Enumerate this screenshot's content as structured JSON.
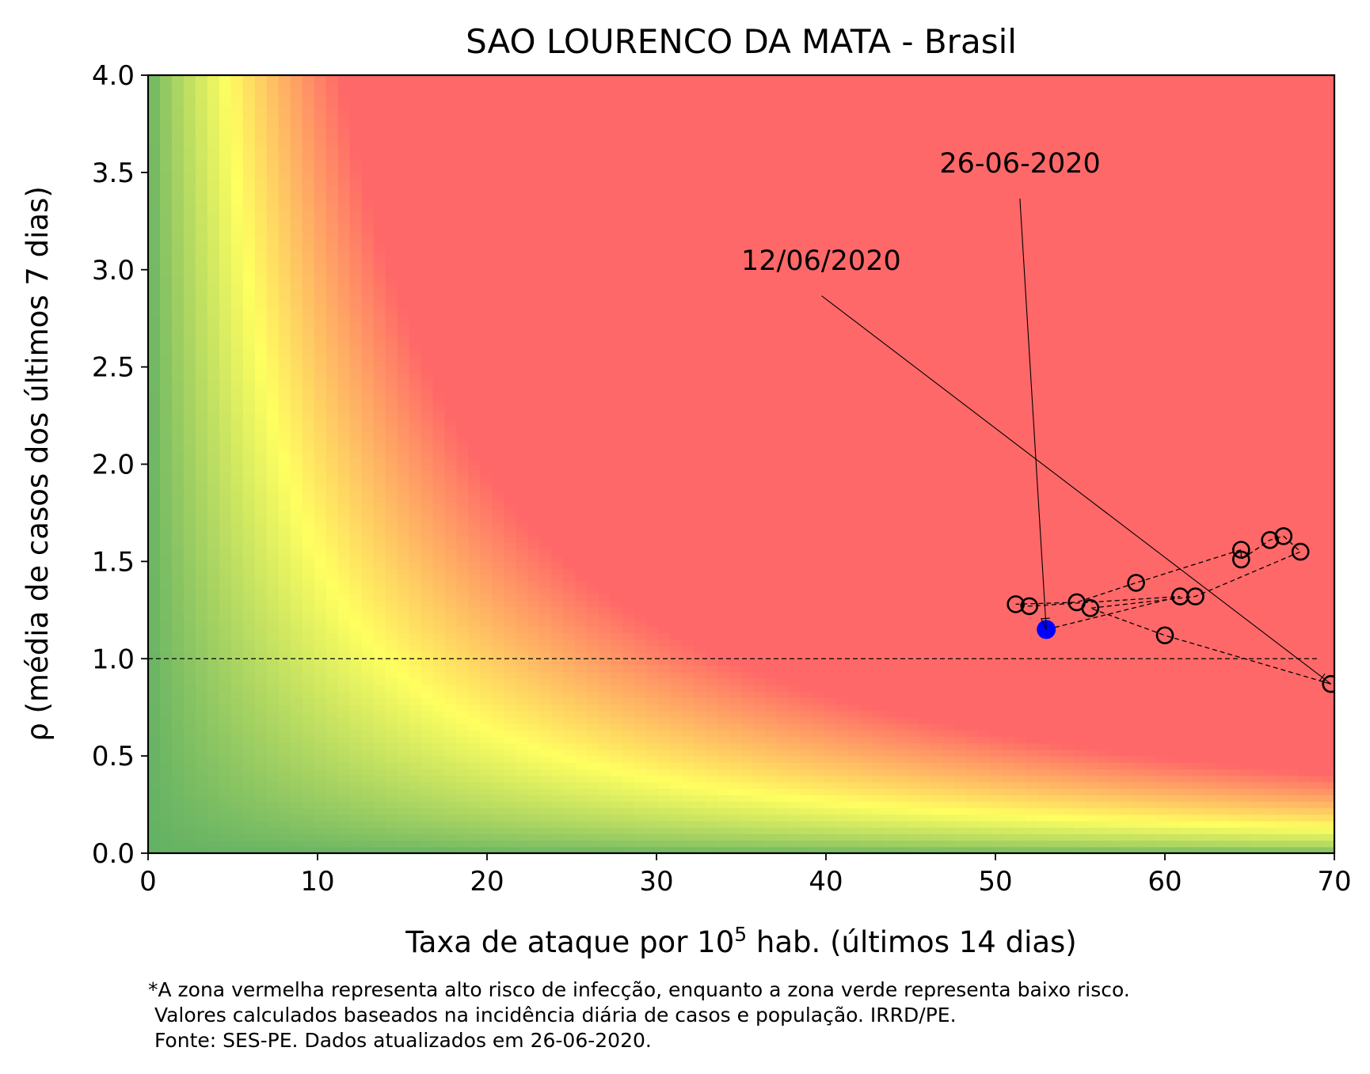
{
  "chart_data": {
    "type": "scatter",
    "title": "SAO LOURENCO DA MATA - Brasil",
    "xlabel": {
      "prefix": "Taxa de ataque por 10",
      "superscript": "5",
      "suffix": " hab. (últimos 14 dias)"
    },
    "ylabel": "ρ (média de casos dos últimos 7 dias)",
    "xlim": [
      0,
      70
    ],
    "ylim": [
      0,
      4
    ],
    "x_ticks": [
      0,
      10,
      20,
      30,
      40,
      50,
      60,
      70
    ],
    "y_ticks": [
      0.0,
      0.5,
      1.0,
      1.5,
      2.0,
      2.5,
      3.0,
      3.5,
      4.0
    ],
    "x_tick_labels": [
      "0",
      "10",
      "20",
      "30",
      "40",
      "50",
      "60",
      "70"
    ],
    "y_tick_labels": [
      "0.0",
      "0.5",
      "1.0",
      "1.5",
      "2.0",
      "2.5",
      "3.0",
      "3.5",
      "4.0"
    ],
    "background": {
      "type": "risk-heatmap",
      "colors": {
        "low": "#63b164",
        "mid": "#ffff60",
        "high": "#ff6868"
      }
    },
    "reference_line": {
      "y": 1.0,
      "x_range": [
        0,
        69
      ],
      "style": "dashed"
    },
    "series": [
      {
        "points": [
          [
            69.8,
            0.87
          ],
          [
            60.0,
            1.12
          ],
          [
            55.6,
            1.26
          ],
          [
            61.8,
            1.32
          ],
          [
            68.0,
            1.55
          ],
          [
            67.0,
            1.63
          ],
          [
            66.2,
            1.61
          ],
          [
            64.5,
            1.51
          ],
          [
            64.5,
            1.56
          ],
          [
            58.3,
            1.39
          ],
          [
            54.8,
            1.29
          ],
          [
            51.2,
            1.28
          ],
          [
            52.0,
            1.27
          ],
          [
            60.9,
            1.32
          ],
          [
            53.0,
            1.15
          ]
        ],
        "marker": "open-circle",
        "line": "dashed",
        "color": "#000000"
      }
    ],
    "current_point": {
      "x": 53.0,
      "y": 1.15,
      "color": "#0000ff"
    },
    "annotations": [
      {
        "text": "12/06/2020",
        "text_at": [
          35.0,
          3.0
        ],
        "arrow_to": [
          69.8,
          0.87
        ]
      },
      {
        "text": "26-06-2020",
        "text_at": [
          46.7,
          3.5
        ],
        "arrow_to": [
          53.0,
          1.15
        ]
      }
    ],
    "footnote": [
      "*A zona vermelha representa alto risco de infecção, enquanto a zona verde representa baixo risco.",
      " Valores calculados baseados na incidência diária de casos e população. IRRD/PE.",
      " Fonte: SES-PE. Dados atualizados em 26-06-2020."
    ]
  }
}
